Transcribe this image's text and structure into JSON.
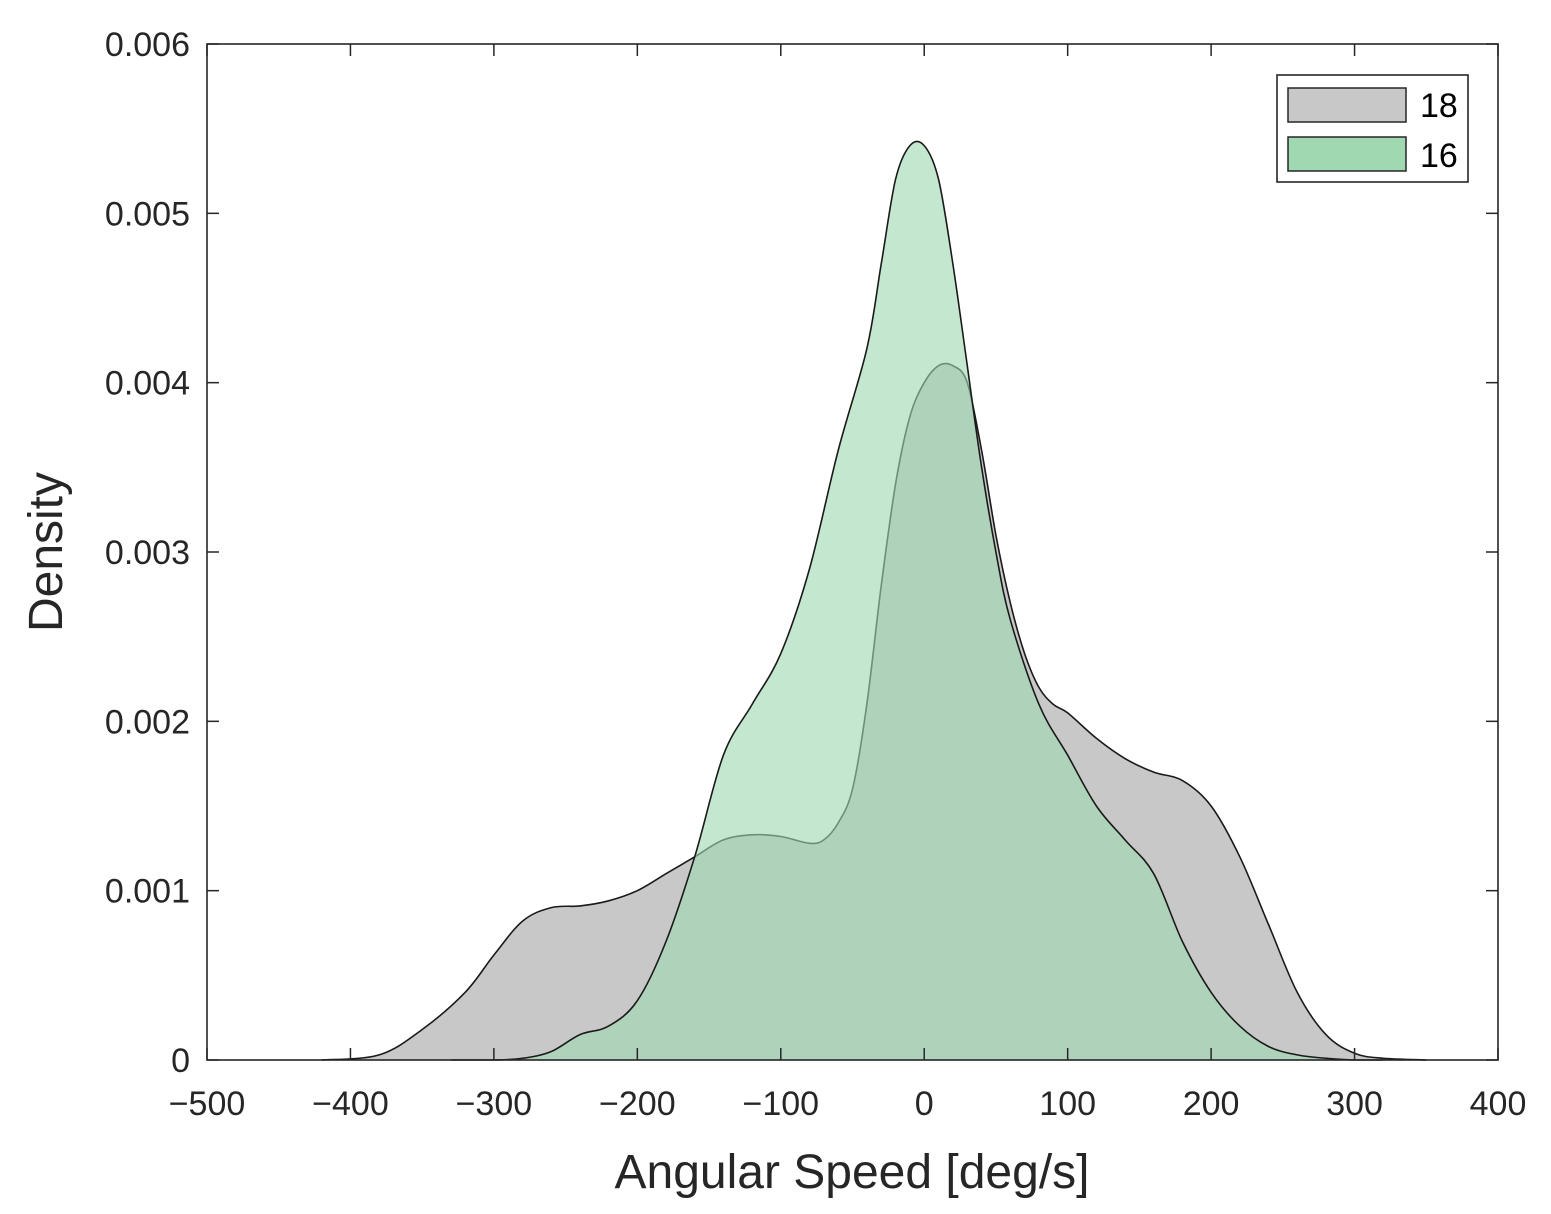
{
  "chart_data": {
    "type": "area",
    "title": "",
    "xlabel": "Angular Speed [deg/s]",
    "ylabel": "Density",
    "xlim": [
      -500,
      400
    ],
    "ylim": [
      0,
      0.006
    ],
    "xticks": [
      -500,
      -400,
      -300,
      -200,
      -100,
      0,
      100,
      200,
      300,
      400
    ],
    "xtick_labels": [
      "−500",
      "−400",
      "−300",
      "−200",
      "−100",
      "0",
      "100",
      "200",
      "300",
      "400"
    ],
    "yticks": [
      0,
      0.001,
      0.002,
      0.003,
      0.004,
      0.005,
      0.006
    ],
    "ytick_labels": [
      "0",
      "0.001",
      "0.002",
      "0.003",
      "0.004",
      "0.005",
      "0.006"
    ],
    "grid": false,
    "legend_position": "top-right",
    "series": [
      {
        "name": "18",
        "color": "#c8c8c8",
        "x": [
          -420,
          -380,
          -350,
          -320,
          -300,
          -280,
          -260,
          -240,
          -220,
          -200,
          -180,
          -160,
          -140,
          -120,
          -100,
          -80,
          -70,
          -60,
          -50,
          -40,
          -30,
          -20,
          -10,
          0,
          10,
          20,
          30,
          40,
          50,
          60,
          70,
          80,
          90,
          100,
          120,
          140,
          160,
          180,
          200,
          220,
          240,
          260,
          280,
          300,
          320,
          350
        ],
        "y": [
          0,
          3e-05,
          0.00018,
          0.0004,
          0.00062,
          0.00082,
          0.0009,
          0.00091,
          0.00094,
          0.001,
          0.0011,
          0.0012,
          0.0013,
          0.00133,
          0.00132,
          0.00128,
          0.0013,
          0.0014,
          0.0016,
          0.0021,
          0.0028,
          0.0034,
          0.0038,
          0.004,
          0.0041,
          0.0041,
          0.004,
          0.0036,
          0.0031,
          0.0027,
          0.0024,
          0.0022,
          0.0021,
          0.00205,
          0.0019,
          0.00178,
          0.0017,
          0.00165,
          0.0015,
          0.0012,
          0.0008,
          0.0004,
          0.00015,
          4e-05,
          1e-05,
          0
        ]
      },
      {
        "name": "16",
        "color": "#a0d8b2",
        "x": [
          -330,
          -300,
          -280,
          -260,
          -240,
          -220,
          -200,
          -180,
          -160,
          -140,
          -120,
          -100,
          -80,
          -60,
          -40,
          -30,
          -20,
          -10,
          0,
          10,
          20,
          30,
          40,
          50,
          60,
          80,
          100,
          120,
          140,
          160,
          180,
          200,
          220,
          240,
          260,
          280,
          300,
          320
        ],
        "y": [
          0,
          0,
          1e-05,
          5e-05,
          0.00015,
          0.0002,
          0.00035,
          0.0007,
          0.0012,
          0.0018,
          0.0021,
          0.0024,
          0.0029,
          0.0036,
          0.0042,
          0.0047,
          0.0052,
          0.0054,
          0.0054,
          0.0052,
          0.0047,
          0.0041,
          0.0035,
          0.003,
          0.0026,
          0.0021,
          0.0018,
          0.0015,
          0.0013,
          0.0011,
          0.0007,
          0.0004,
          0.0002,
          8e-05,
          3e-05,
          1e-05,
          0,
          0
        ]
      }
    ]
  }
}
